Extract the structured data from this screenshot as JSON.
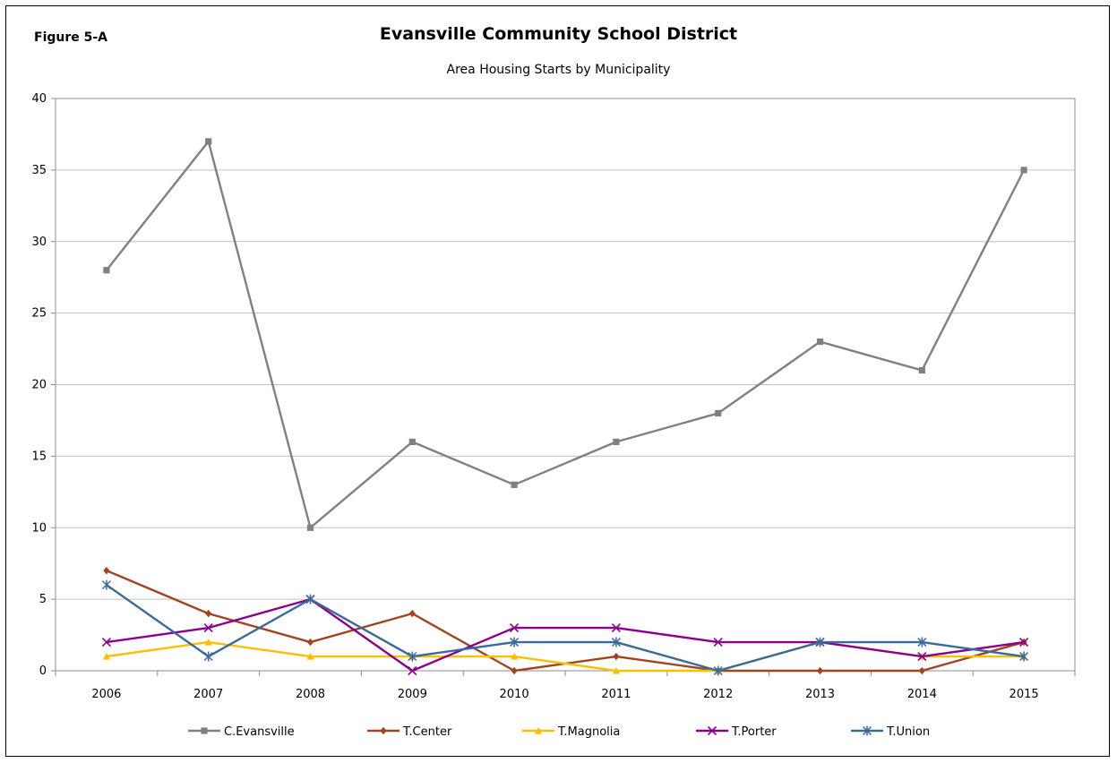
{
  "figure_label": "Figure 5-A",
  "chart_data": {
    "type": "line",
    "title": "Evansville Community School District",
    "subtitle": "Area Housing Starts by Municipality",
    "xlabel": "",
    "ylabel": "",
    "categories": [
      "2006",
      "2007",
      "2008",
      "2009",
      "2010",
      "2011",
      "2012",
      "2013",
      "2014",
      "2015"
    ],
    "ylim": [
      0,
      40
    ],
    "yticks": [
      0,
      5,
      10,
      15,
      20,
      25,
      30,
      35,
      40
    ],
    "grid": true,
    "legend_position": "bottom",
    "series": [
      {
        "name": "C.Evansville",
        "color": "#808080",
        "marker": "square",
        "values": [
          28,
          37,
          10,
          16,
          13,
          16,
          18,
          23,
          21,
          35
        ]
      },
      {
        "name": "T.Center",
        "color": "#A0461E",
        "marker": "diamond",
        "values": [
          7,
          4,
          2,
          4,
          0,
          1,
          0,
          0,
          0,
          2
        ]
      },
      {
        "name": "T.Magnolia",
        "color": "#F8C000",
        "marker": "triangle",
        "values": [
          1,
          2,
          1,
          1,
          1,
          0,
          0,
          2,
          1,
          1
        ]
      },
      {
        "name": "T.Porter",
        "color": "#8B008B",
        "marker": "x",
        "values": [
          2,
          3,
          5,
          0,
          3,
          3,
          2,
          2,
          1,
          2
        ]
      },
      {
        "name": "T.Union",
        "color": "#3A6A9A",
        "marker": "star",
        "values": [
          6,
          1,
          5,
          1,
          2,
          2,
          0,
          2,
          2,
          1
        ]
      }
    ]
  }
}
